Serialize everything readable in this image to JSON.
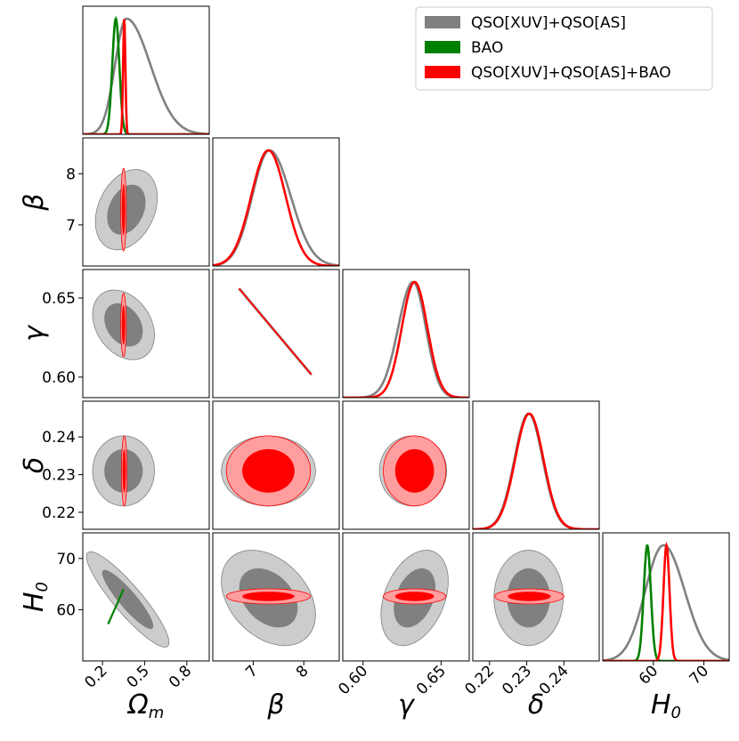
{
  "chart_data": {
    "type": "corner",
    "parameters": [
      {
        "key": "om",
        "label": "Ω",
        "sub": "m",
        "range": [
          0.06,
          0.96
        ],
        "ticks": [
          0.2,
          0.5,
          0.8
        ],
        "tick_labels": [
          "0.2",
          "0.5",
          "0.8"
        ]
      },
      {
        "key": "beta",
        "label": "β",
        "range": [
          6.2,
          8.7
        ],
        "ticks": [
          7,
          8
        ],
        "tick_labels": [
          "7",
          "8"
        ]
      },
      {
        "key": "gamma",
        "label": "γ",
        "range": [
          0.587,
          0.668
        ],
        "ticks": [
          0.6,
          0.65
        ],
        "tick_labels": [
          "0.60",
          "0.65"
        ]
      },
      {
        "key": "delta",
        "label": "δ",
        "range": [
          0.2155,
          0.2495
        ],
        "ticks": [
          0.22,
          0.23,
          0.24
        ],
        "tick_labels": [
          "0.22",
          "0.23",
          "0.24"
        ]
      },
      {
        "key": "h0",
        "label": "H",
        "sub": "0",
        "range": [
          50,
          75
        ],
        "ticks": [
          60,
          70
        ],
        "tick_labels": [
          "60",
          "70"
        ]
      }
    ],
    "series": [
      {
        "name": "QSO[XUV]+QSO[AS]",
        "color": "#808080"
      },
      {
        "name": "BAO",
        "color": "#008000"
      },
      {
        "name": "QSO[XUV]+QSO[AS]+BAO",
        "color": "#ff0000"
      }
    ],
    "marginals": {
      "om": {
        "QSO[XUV]+QSO[AS]": {
          "peak": 0.37,
          "sigma_left": 0.08,
          "sigma_right": 0.17
        },
        "BAO": {
          "peak": 0.295,
          "sigma_left": 0.025,
          "sigma_right": 0.025
        },
        "QSO[XUV]+QSO[AS]+BAO": {
          "peak": 0.355,
          "sigma_left": 0.008,
          "sigma_right": 0.008
        }
      },
      "beta": {
        "QSO[XUV]+QSO[AS]": {
          "peak": 7.32,
          "sigma_left": 0.34,
          "sigma_right": 0.42
        },
        "QSO[XUV]+QSO[AS]+BAO": {
          "peak": 7.3,
          "sigma_left": 0.34,
          "sigma_right": 0.34
        }
      },
      "gamma": {
        "QSO[XUV]+QSO[AS]": {
          "peak": 0.632,
          "sigma_left": 0.0095,
          "sigma_right": 0.0082
        },
        "QSO[XUV]+QSO[AS]+BAO": {
          "peak": 0.633,
          "sigma_left": 0.0082,
          "sigma_right": 0.0082
        }
      },
      "delta": {
        "QSO[XUV]+QSO[AS]": {
          "peak": 0.2305,
          "sigma_left": 0.0038,
          "sigma_right": 0.0038
        },
        "QSO[XUV]+QSO[AS]+BAO": {
          "peak": 0.2307,
          "sigma_left": 0.0038,
          "sigma_right": 0.0038
        }
      },
      "h0": {
        "QSO[XUV]+QSO[AS]": {
          "peak": 62.0,
          "sigma_left": 3.6,
          "sigma_right": 4.2
        },
        "BAO": {
          "peak": 58.8,
          "sigma_left": 0.7,
          "sigma_right": 0.7
        },
        "QSO[XUV]+QSO[AS]+BAO": {
          "peak": 62.6,
          "sigma_left": 0.6,
          "sigma_right": 0.6
        }
      }
    },
    "contours": {
      "om|beta": {
        "QSO[XUV]+QSO[AS]": {
          "center": [
            0.37,
            7.3
          ],
          "sx": 0.09,
          "sy": 0.32,
          "rho": 0.3
        },
        "QSO[XUV]+QSO[AS]+BAO": {
          "center": [
            0.35,
            7.3
          ],
          "sx": 0.008,
          "sy": 0.33,
          "rho": 0.0
        }
      },
      "om|gamma": {
        "QSO[XUV]+QSO[AS]": {
          "center": [
            0.35,
            0.633
          ],
          "sx": 0.09,
          "sy": 0.009,
          "rho": -0.3
        },
        "QSO[XUV]+QSO[AS]+BAO": {
          "center": [
            0.35,
            0.633
          ],
          "sx": 0.008,
          "sy": 0.0082,
          "rho": 0.0
        }
      },
      "om|delta": {
        "QSO[XUV]+QSO[AS]": {
          "center": [
            0.35,
            0.231
          ],
          "sx": 0.09,
          "sy": 0.0038,
          "rho": 0.0
        },
        "QSO[XUV]+QSO[AS]+BAO": {
          "center": [
            0.355,
            0.231
          ],
          "sx": 0.008,
          "sy": 0.0038,
          "rho": 0.0
        }
      },
      "om|h0": {
        "QSO[XUV]+QSO[AS]": {
          "center": [
            0.38,
            62.0
          ],
          "sx": 0.12,
          "sy": 3.8,
          "rho": -0.9
        }
      },
      "beta|gamma": {
        "QSO[XUV]+QSO[AS]+BAO": {
          "line": [
            [
              6.72,
              0.656
            ],
            [
              8.15,
              0.6015
            ]
          ]
        }
      },
      "beta|delta": {
        "QSO[XUV]+QSO[AS]": {
          "center": [
            7.3,
            0.231
          ],
          "sx": 0.38,
          "sy": 0.0038,
          "rho": 0.0
        },
        "QSO[XUV]+QSO[AS]+BAO": {
          "center": [
            7.3,
            0.231
          ],
          "sx": 0.34,
          "sy": 0.0038,
          "rho": 0.0
        }
      },
      "beta|h0": {
        "QSO[XUV]+QSO[AS]": {
          "center": [
            7.3,
            62.3
          ],
          "sx": 0.38,
          "sy": 3.8,
          "rho": -0.35
        },
        "QSO[XUV]+QSO[AS]+BAO": {
          "center": [
            7.3,
            62.6
          ],
          "sx": 0.34,
          "sy": 0.6,
          "rho": 0.0
        }
      },
      "gamma|delta": {
        "QSO[XUV]+QSO[AS]": {
          "center": [
            0.632,
            0.231
          ],
          "sx": 0.0088,
          "sy": 0.0038,
          "rho": 0.0
        },
        "QSO[XUV]+QSO[AS]+BAO": {
          "center": [
            0.633,
            0.231
          ],
          "sx": 0.0082,
          "sy": 0.0038,
          "rho": 0.0
        }
      },
      "gamma|h0": {
        "QSO[XUV]+QSO[AS]": {
          "center": [
            0.633,
            62.3
          ],
          "sx": 0.0088,
          "sy": 3.8,
          "rho": 0.35
        },
        "QSO[XUV]+QSO[AS]+BAO": {
          "center": [
            0.633,
            62.6
          ],
          "sx": 0.0082,
          "sy": 0.6,
          "rho": 0.0
        }
      },
      "delta|h0": {
        "QSO[XUV]+QSO[AS]": {
          "center": [
            0.2305,
            62.3
          ],
          "sx": 0.0038,
          "sy": 3.8,
          "rho": 0.0
        },
        "QSO[XUV]+QSO[AS]+BAO": {
          "center": [
            0.2307,
            62.6
          ],
          "sx": 0.0038,
          "sy": 0.6,
          "rho": 0.0
        }
      }
    },
    "bao_degeneracy_om_h0": [
      [
        0.24,
        57.2
      ],
      [
        0.35,
        64.0
      ]
    ],
    "legend": {
      "position": "top-right"
    }
  }
}
